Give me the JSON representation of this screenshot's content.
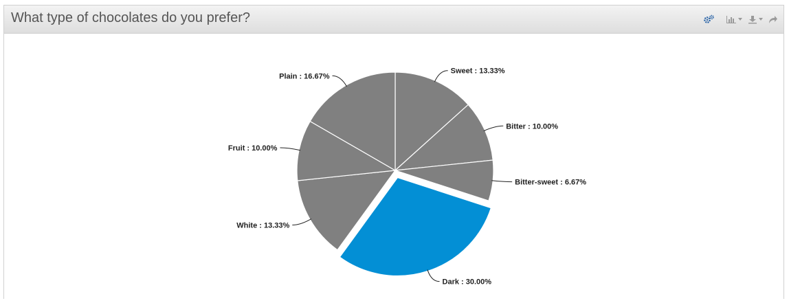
{
  "panel": {
    "title": "What type of chocolates do you prefer?"
  },
  "toolbar": {
    "icons": [
      "settings-icon",
      "chart-type-icon",
      "download-icon",
      "share-icon"
    ]
  },
  "colors": {
    "slice": "#808080",
    "highlight": "#038fd5",
    "slice_border": "#ffffff",
    "connector": "#222222"
  },
  "chart_data": {
    "type": "pie",
    "title": "What type of chocolates do you prefer?",
    "categories": [
      "Sweet",
      "Bitter",
      "Bitter-sweet",
      "Dark",
      "White",
      "Fruit",
      "Plain"
    ],
    "values": [
      13.33,
      10.0,
      6.67,
      30.0,
      13.33,
      10.0,
      16.67
    ],
    "labels": [
      "Sweet : 13.33%",
      "Bitter : 10.00%",
      "Bitter-sweet : 6.67%",
      "Dark : 30.00%",
      "White : 13.33%",
      "Fruit : 10.00%",
      "Plain : 16.67%"
    ],
    "highlighted": "Dark",
    "legend": "none"
  }
}
